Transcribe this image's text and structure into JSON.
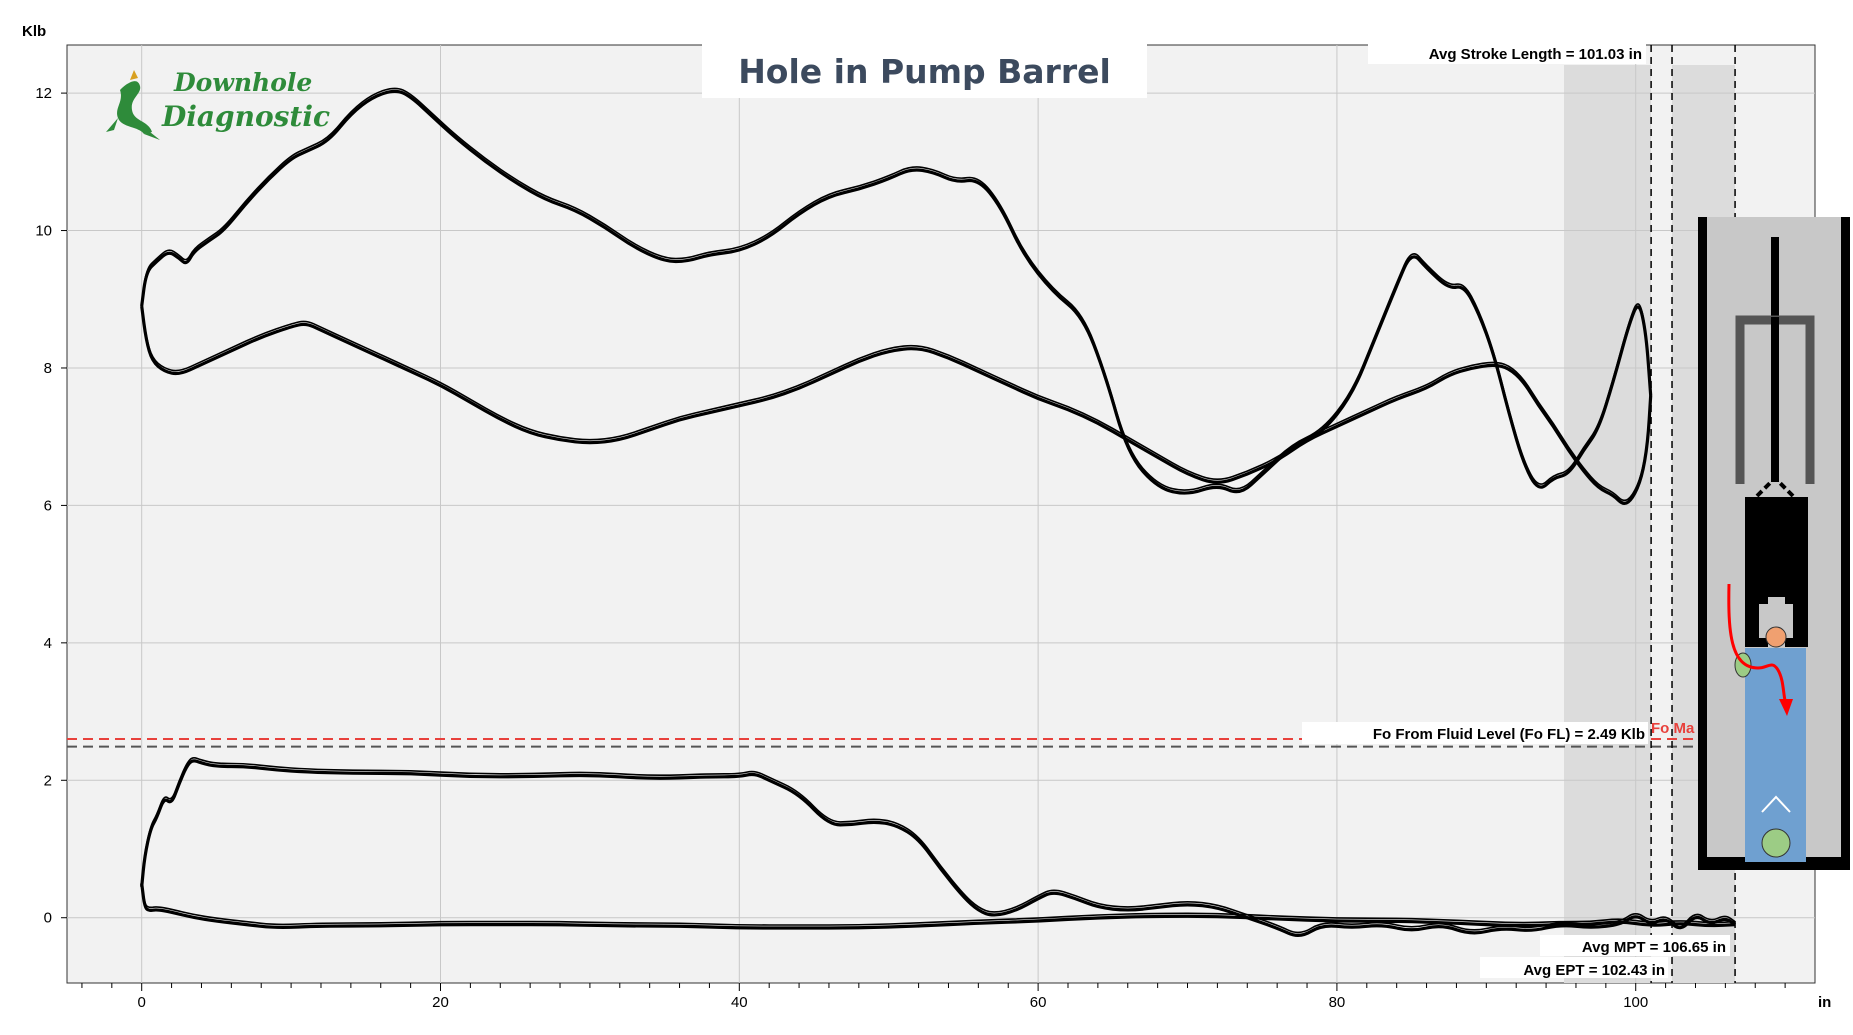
{
  "title": "Hole in Pump Barrel",
  "logo": {
    "line1": "Downhole",
    "line2": "Diagnostic"
  },
  "colors": {
    "curve": "#000000",
    "grid": "#c8c8c8",
    "plot_bg": "#f2f2f2",
    "shade": "#dcdcdc",
    "fo_max": "#e8413c",
    "fo_fl": "#555555",
    "fluid": "#6fa0d0",
    "title": "#3c4a5e",
    "logo": "#2e8b3a"
  },
  "chart_data": {
    "type": "line",
    "xlabel": "in",
    "ylabel": "Klb",
    "xlim": [
      -5,
      112
    ],
    "ylim": [
      -0.95,
      12.7
    ],
    "x_ticks": [
      0,
      20,
      40,
      60,
      80,
      100
    ],
    "y_ticks": [
      0,
      2,
      4,
      6,
      8,
      10,
      12
    ],
    "grid": true,
    "annotations": {
      "avg_stroke_length": "Avg Stroke Length = 101.03 in",
      "fo_fl": "Fo From Fluid Level (Fo FL) = 2.49 Klb",
      "fo_max": "Fo Ma",
      "avg_mpt": "Avg MPT = 106.65 in",
      "avg_ept": "Avg EPT = 102.43 in"
    },
    "reference_lines": {
      "fo_max_y": 2.6,
      "fo_fl_y": 2.49,
      "stroke_length_x": 101.03,
      "ept_x": 102.43,
      "mpt_x": 106.65
    },
    "shaded_regions": [
      [
        95.2,
        101.03
      ],
      [
        102.43,
        106.65
      ]
    ],
    "series": [
      {
        "part": "surface card upstroke",
        "x": [
          0,
          0.3,
          1,
          1.8,
          2.5,
          3,
          3.5,
          4.5,
          5.5,
          7,
          8.5,
          10,
          11,
          12.5,
          14,
          15.5,
          17,
          18,
          19.5,
          21,
          23,
          25,
          27,
          29,
          31,
          33,
          35,
          36.5,
          38,
          40,
          42,
          44,
          46,
          48,
          50,
          51.5,
          53,
          54.5,
          56,
          57.5,
          59,
          61,
          63,
          64.5,
          66,
          68,
          70,
          72,
          73.5,
          75,
          77,
          79,
          81,
          82.5,
          84,
          85,
          86,
          87.5,
          88.5,
          89.5,
          90.5,
          91.5,
          92.5,
          93.5,
          94.5,
          95.5,
          96.5,
          97.5,
          98.5,
          99.5,
          100.2,
          100.7,
          101
        ],
        "y": [
          8.9,
          9.4,
          9.55,
          9.7,
          9.6,
          9.5,
          9.7,
          9.85,
          10.0,
          10.4,
          10.75,
          11.05,
          11.15,
          11.3,
          11.7,
          11.95,
          12.05,
          11.95,
          11.65,
          11.35,
          11.0,
          10.7,
          10.45,
          10.3,
          10.05,
          9.75,
          9.55,
          9.55,
          9.65,
          9.7,
          9.9,
          10.25,
          10.5,
          10.6,
          10.75,
          10.9,
          10.85,
          10.7,
          10.75,
          10.35,
          9.65,
          9.1,
          8.75,
          7.9,
          6.75,
          6.25,
          6.15,
          6.3,
          6.15,
          6.45,
          6.85,
          7.05,
          7.6,
          8.4,
          9.2,
          9.7,
          9.45,
          9.15,
          9.2,
          8.8,
          8.2,
          7.35,
          6.6,
          6.2,
          6.4,
          6.45,
          6.8,
          7.1,
          7.8,
          8.6,
          9.0,
          8.5,
          7.6
        ]
      },
      {
        "part": "surface card downstroke",
        "x": [
          101,
          100.8,
          100.4,
          99.8,
          99.2,
          98.5,
          97.5,
          96.5,
          95.5,
          94.5,
          93.5,
          92.5,
          91.5,
          90.5,
          89,
          87.5,
          86,
          84,
          82,
          80,
          78,
          76,
          74,
          72,
          70,
          68,
          66,
          64,
          62,
          60,
          58,
          56,
          54,
          52,
          50,
          48,
          46,
          44,
          42,
          40,
          38,
          36,
          34,
          32,
          30,
          28,
          26,
          24,
          22,
          20,
          18,
          16,
          14,
          12,
          11,
          10,
          8,
          6,
          4,
          2.5,
          1.5,
          0.7,
          0.3,
          0
        ],
        "y": [
          7.6,
          6.9,
          6.4,
          6.1,
          6.0,
          6.15,
          6.25,
          6.5,
          6.8,
          7.15,
          7.45,
          7.8,
          8.0,
          8.05,
          8.0,
          7.9,
          7.7,
          7.55,
          7.35,
          7.15,
          6.95,
          6.65,
          6.45,
          6.3,
          6.45,
          6.7,
          6.95,
          7.2,
          7.4,
          7.55,
          7.75,
          7.95,
          8.15,
          8.3,
          8.25,
          8.1,
          7.9,
          7.7,
          7.55,
          7.45,
          7.35,
          7.25,
          7.1,
          6.95,
          6.9,
          6.95,
          7.05,
          7.25,
          7.5,
          7.75,
          7.95,
          8.15,
          8.35,
          8.55,
          8.65,
          8.6,
          8.45,
          8.25,
          8.05,
          7.9,
          7.95,
          8.1,
          8.4,
          8.9
        ]
      },
      {
        "part": "downhole card upstroke",
        "x": [
          0,
          0.2,
          0.6,
          1,
          1.5,
          2,
          2.5,
          3,
          3.4,
          4,
          5,
          7,
          9,
          11,
          14,
          18,
          22,
          26,
          30,
          34,
          38,
          40,
          41,
          42,
          44,
          46,
          47.5,
          49,
          50.5,
          52,
          53.5,
          55,
          56,
          57,
          58.5,
          60,
          61,
          62.5,
          64,
          66,
          68,
          70,
          72,
          74,
          76,
          77.5,
          79,
          81,
          83,
          85,
          87,
          89,
          91,
          93,
          95,
          97,
          99,
          100,
          101,
          102,
          103,
          104,
          105,
          106,
          106.65
        ],
        "y": [
          0.45,
          0.9,
          1.3,
          1.45,
          1.75,
          1.65,
          1.95,
          2.2,
          2.3,
          2.25,
          2.2,
          2.2,
          2.15,
          2.12,
          2.1,
          2.1,
          2.05,
          2.05,
          2.08,
          2.02,
          2.05,
          2.05,
          2.1,
          2.0,
          1.8,
          1.35,
          1.35,
          1.4,
          1.35,
          1.15,
          0.7,
          0.3,
          0.1,
          0.02,
          0.1,
          0.28,
          0.38,
          0.28,
          0.15,
          0.1,
          0.15,
          0.2,
          0.15,
          0.0,
          -0.15,
          -0.3,
          -0.1,
          -0.15,
          -0.1,
          -0.2,
          -0.1,
          -0.25,
          -0.15,
          -0.2,
          -0.1,
          -0.15,
          -0.1,
          0.05,
          -0.1,
          0.0,
          -0.2,
          0.05,
          -0.1,
          0.0,
          -0.1
        ]
      },
      {
        "part": "downhole card downstroke",
        "x": [
          106.65,
          105,
          103,
          101,
          99,
          97,
          95,
          92,
          88,
          84,
          80,
          76,
          72,
          68,
          64,
          60,
          56,
          52,
          48,
          44,
          40,
          36,
          32,
          28,
          24,
          20,
          16,
          12,
          9,
          7,
          5,
          3.5,
          2,
          1,
          0.5,
          0.2,
          0
        ],
        "y": [
          -0.1,
          -0.12,
          -0.08,
          -0.12,
          -0.05,
          -0.1,
          -0.1,
          -0.12,
          -0.08,
          -0.05,
          -0.05,
          -0.02,
          0.02,
          0.02,
          0.0,
          -0.05,
          -0.08,
          -0.12,
          -0.15,
          -0.15,
          -0.15,
          -0.12,
          -0.12,
          -0.1,
          -0.1,
          -0.1,
          -0.12,
          -0.12,
          -0.15,
          -0.1,
          -0.05,
          0.0,
          0.08,
          0.12,
          0.1,
          0.15,
          0.5
        ]
      }
    ]
  }
}
